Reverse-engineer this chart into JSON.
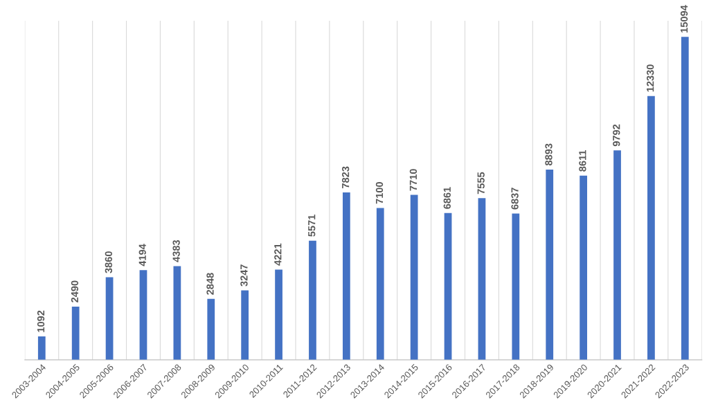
{
  "chart_data": {
    "type": "bar",
    "categories": [
      "2003-2004",
      "2004-2005",
      "2005-2006",
      "2006-2007",
      "2007-2008",
      "2008-2009",
      "2009-2010",
      "2010-2011",
      "2011-2012",
      "2012-2013",
      "2013-2014",
      "2014-2015",
      "2015-2016",
      "2016-2017",
      "2017-2018",
      "2018-2019",
      "2019-2020",
      "2020-2021",
      "2021-2022",
      "2022-2023"
    ],
    "values": [
      1092,
      2490,
      3860,
      4194,
      4383,
      2848,
      3247,
      4221,
      5571,
      7823,
      7100,
      7710,
      6861,
      7555,
      6837,
      8893,
      8611,
      9792,
      12330,
      15094
    ],
    "color": "#4472c4",
    "data_labels": true,
    "grid": "x",
    "tick_labels": "x"
  }
}
